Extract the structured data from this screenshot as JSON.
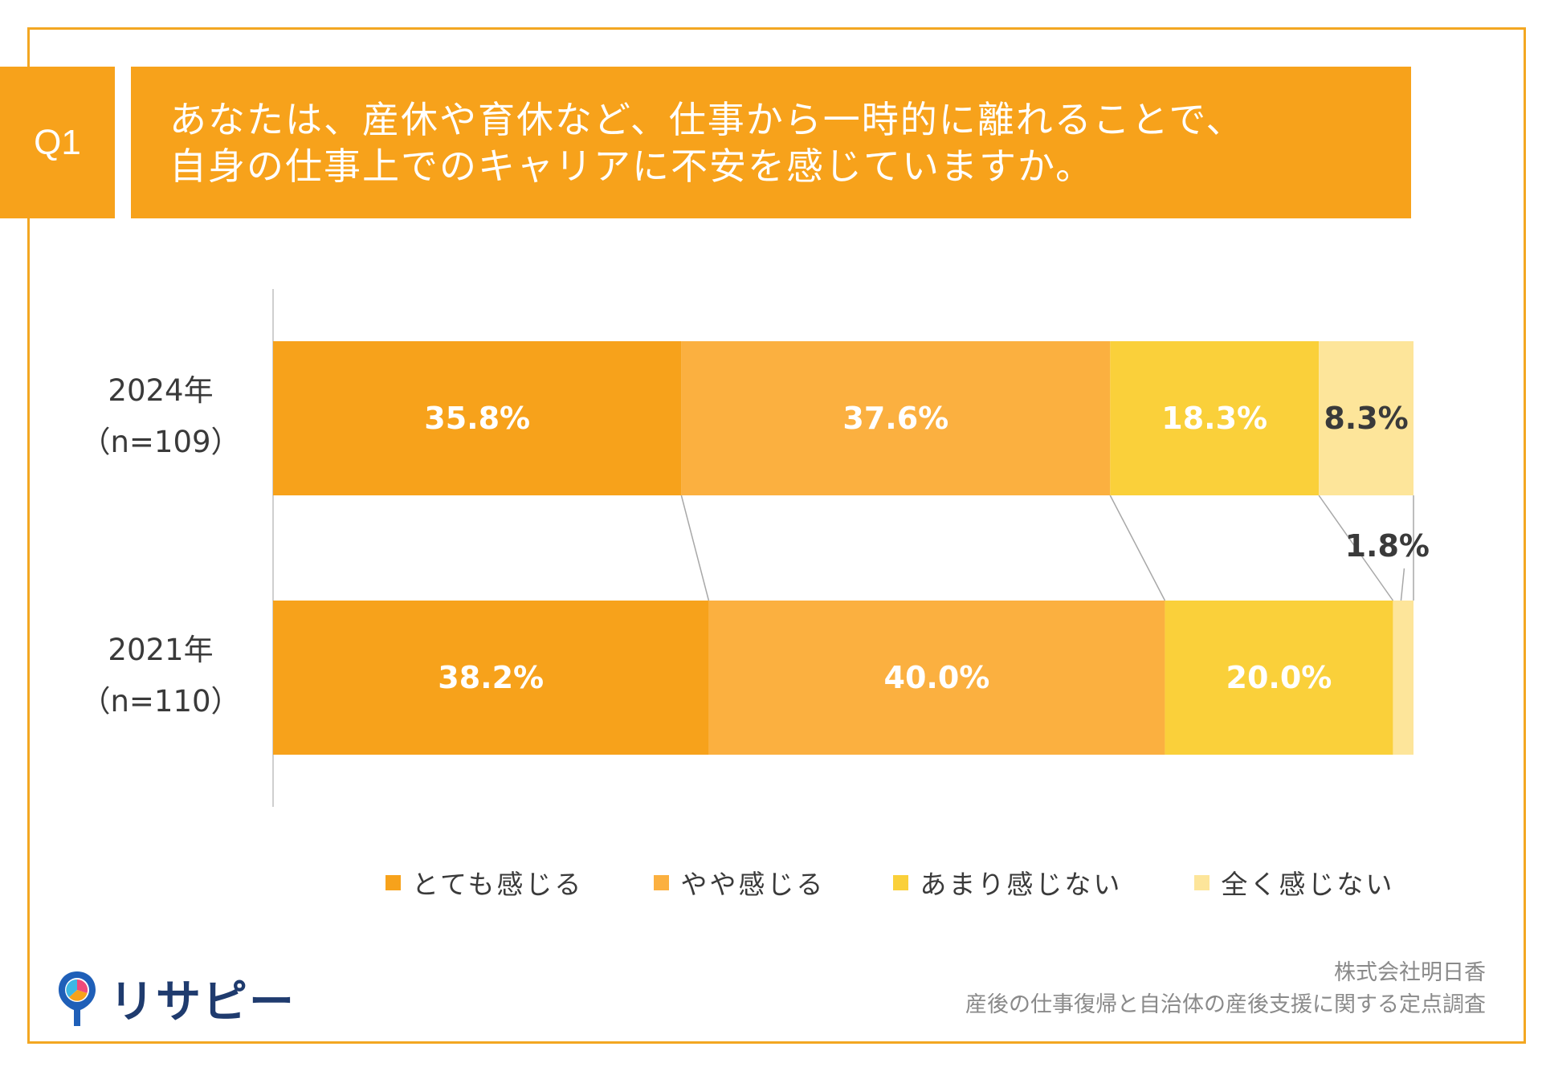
{
  "question": {
    "number": "Q1",
    "line1": "あなたは、産休や育休など、仕事から一時的に離れることで、",
    "line2": "自身の仕事上でのキャリアに不安を感じていますか。"
  },
  "colors": {
    "accent": "#F7A21B",
    "frame": "#F3A722",
    "series": [
      "#F7A21B",
      "#FBB040",
      "#FAD03A",
      "#FDE59A"
    ]
  },
  "chart_data": {
    "type": "bar",
    "orientation": "horizontal",
    "stacked": "percent",
    "categories": [
      {
        "year": "2024年",
        "n": "（n=109）"
      },
      {
        "year": "2021年",
        "n": "（n=110）"
      }
    ],
    "series": [
      {
        "name": "とても感じる",
        "values": [
          35.8,
          38.2
        ],
        "labels": [
          "35.8%",
          "38.2%"
        ]
      },
      {
        "name": "やや感じる",
        "values": [
          37.6,
          40.0
        ],
        "labels": [
          "37.6%",
          "40.0%"
        ]
      },
      {
        "name": "あまり感じない",
        "values": [
          18.3,
          20.0
        ],
        "labels": [
          "18.3%",
          "20.0%"
        ]
      },
      {
        "name": "全く感じない",
        "values": [
          8.3,
          1.8
        ],
        "labels": [
          "8.3%",
          "1.8%"
        ]
      }
    ],
    "xlim": [
      0,
      100
    ],
    "legend": "bottom",
    "connector_lines": true
  },
  "legend": {
    "items": [
      "とても感じる",
      "やや感じる",
      "あまり感じない",
      "全く感じない"
    ]
  },
  "brand": {
    "logo_text": "リサピー"
  },
  "source": {
    "company": "株式会社明日香",
    "survey": "産後の仕事復帰と自治体の産後支援に関する定点調査"
  }
}
